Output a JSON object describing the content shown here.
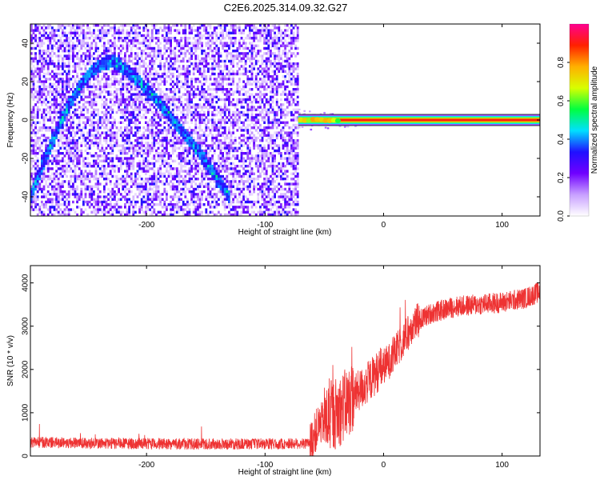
{
  "title": "C2E6.2025.314.09.32.G27",
  "chart_data": [
    {
      "type": "heatmap",
      "xlabel": "Height of straight line (km)",
      "ylabel": "Frequency (Hz)",
      "xlim": [
        -298,
        132
      ],
      "ylim": [
        -50,
        50
      ],
      "x_ticks": [
        -200,
        -100,
        0,
        100
      ],
      "y_ticks": [
        -40,
        -20,
        0,
        20,
        40
      ],
      "x_tick_labels": [
        "-200",
        "-100",
        "0",
        "100"
      ],
      "y_tick_labels": [
        "-40",
        "-20",
        "0",
        "20",
        "40"
      ],
      "colorbar": {
        "label": "Normalized spectral amplitude",
        "range": [
          0,
          1
        ],
        "ticks": [
          0.0,
          0.2,
          0.4,
          0.6,
          0.8
        ],
        "tick_labels": [
          "0.0",
          "0.2",
          "0.4",
          "0.6",
          "0.8"
        ],
        "colors": [
          "#ffffff",
          "#c8a0ff",
          "#7000ff",
          "#2010ff",
          "#00e0ff",
          "#00ff40",
          "#d8ff00",
          "#ffb000",
          "#ff2000",
          "#ff0090"
        ]
      },
      "noise_region_x": [
        -298,
        -72
      ],
      "signal_line": {
        "x": [
          -72,
          132
        ],
        "frequency": 0,
        "amplitude": 0.9
      },
      "arc_feature": {
        "x": [
          -298,
          -130
        ],
        "peak_x": -230,
        "peak_frequency": 31,
        "end_frequency": -40
      }
    },
    {
      "type": "line",
      "xlabel": "Height of straight line (km)",
      "ylabel": "SNR (10 * v/v)",
      "xlim": [
        -298,
        132
      ],
      "ylim": [
        0,
        4400
      ],
      "x_ticks": [
        -200,
        -100,
        0,
        100
      ],
      "y_ticks": [
        0,
        1000,
        2000,
        3000,
        4000
      ],
      "x_tick_labels": [
        "-200",
        "-100",
        "0",
        "100"
      ],
      "y_tick_labels": [
        "0",
        "1000",
        "2000",
        "3000",
        "4000"
      ],
      "color": "#ee3333",
      "series_profile": {
        "x": [
          -298,
          -250,
          -200,
          -150,
          -100,
          -62,
          -55,
          -45,
          -35,
          -25,
          -15,
          -5,
          5,
          15,
          25,
          40,
          60,
          80,
          100,
          120,
          132
        ],
        "y": [
          330,
          310,
          290,
          290,
          290,
          300,
          700,
          900,
          1100,
          1400,
          1650,
          1950,
          2200,
          2600,
          3050,
          3300,
          3450,
          3500,
          3550,
          3650,
          3800
        ]
      }
    }
  ]
}
